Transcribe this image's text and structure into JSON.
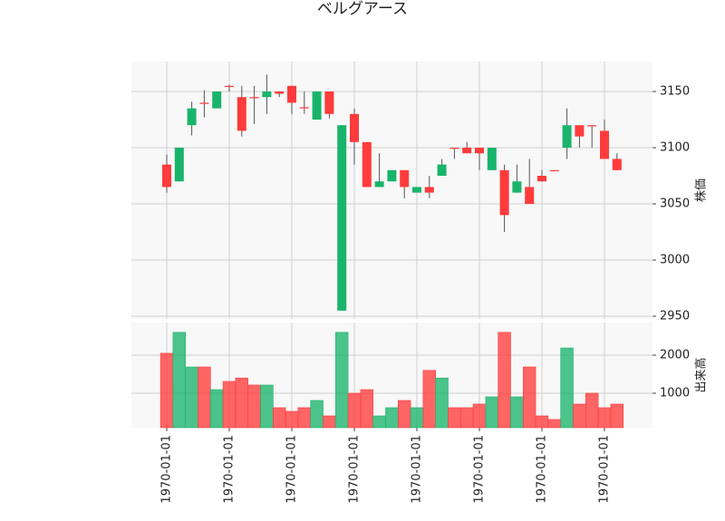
{
  "chart_data": {
    "type": "candlestick",
    "title": "ベルグアース",
    "ylabel": "株価",
    "categories": [
      "1970-01-01",
      null,
      null,
      null,
      null,
      "1970-01-01",
      null,
      null,
      null,
      null,
      "1970-01-01",
      null,
      null,
      null,
      null,
      "1970-01-01",
      null,
      null,
      null,
      null,
      "1970-01-01",
      null,
      null,
      null,
      null,
      "1970-01-01",
      null,
      null,
      null,
      null,
      "1970-01-01",
      null,
      null,
      null,
      null,
      "1970-01-01",
      null
    ],
    "open": [
      3085,
      3070,
      3120,
      3140,
      3135,
      3155,
      3145,
      3145,
      3145,
      3150,
      3155,
      3136,
      3125,
      3150,
      2955,
      3130,
      3105,
      3065,
      3070,
      3080,
      3060,
      3065,
      3075,
      3100,
      3100,
      3100,
      3080,
      3080,
      3060,
      3065,
      3075,
      3080,
      3100,
      3120,
      3120,
      3115,
      3090
    ],
    "high": [
      3094,
      3100,
      3141,
      3151,
      3150,
      3156,
      3155,
      3155,
      3165,
      3150,
      3155,
      3150,
      3150,
      3150,
      3120,
      3135,
      3105,
      3095,
      3080,
      3080,
      3065,
      3075,
      3090,
      3100,
      3105,
      3100,
      3100,
      3085,
      3085,
      3090,
      3080,
      3080,
      3135,
      3120,
      3120,
      3125,
      3095
    ],
    "low": [
      3060,
      3070,
      3111,
      3127,
      3135,
      3150,
      3110,
      3121,
      3130,
      3145,
      3130,
      3130,
      3125,
      3126,
      2955,
      3085,
      3065,
      3065,
      3070,
      3055,
      3060,
      3055,
      3075,
      3090,
      3095,
      3080,
      3080,
      3025,
      3060,
      3050,
      3070,
      3079,
      3090,
      3100,
      3100,
      3090,
      3080
    ],
    "close": [
      3065,
      3100,
      3135,
      3139,
      3150,
      3154,
      3115,
      3144,
      3150,
      3148,
      3140,
      3135,
      3150,
      3130,
      3120,
      3105,
      3065,
      3070,
      3080,
      3065,
      3065,
      3060,
      3085,
      3099,
      3095,
      3095,
      3100,
      3040,
      3070,
      3050,
      3070,
      3079,
      3120,
      3110,
      3119,
      3090,
      3080
    ],
    "up_color": "#19b46b",
    "down_color": "#ff3b3b",
    "ylim": [
      2947.6,
      3176.6
    ],
    "yticks": [
      2950,
      3000,
      3050,
      3100,
      3150
    ],
    "grid": true,
    "volume": {
      "ylabel": "出来高",
      "values": [
        2050,
        2600,
        1690,
        1690,
        1095,
        1310,
        1400,
        1215,
        1215,
        620,
        524,
        620,
        810,
        405,
        2600,
        1000,
        1095,
        405,
        620,
        810,
        620,
        1600,
        1400,
        620,
        620,
        715,
        905,
        2600,
        905,
        1690,
        405,
        310,
        2190,
        715,
        1000,
        620,
        715
      ],
      "ylim": [
        95,
        2857
      ],
      "yticks": [
        1000,
        2000
      ]
    }
  }
}
